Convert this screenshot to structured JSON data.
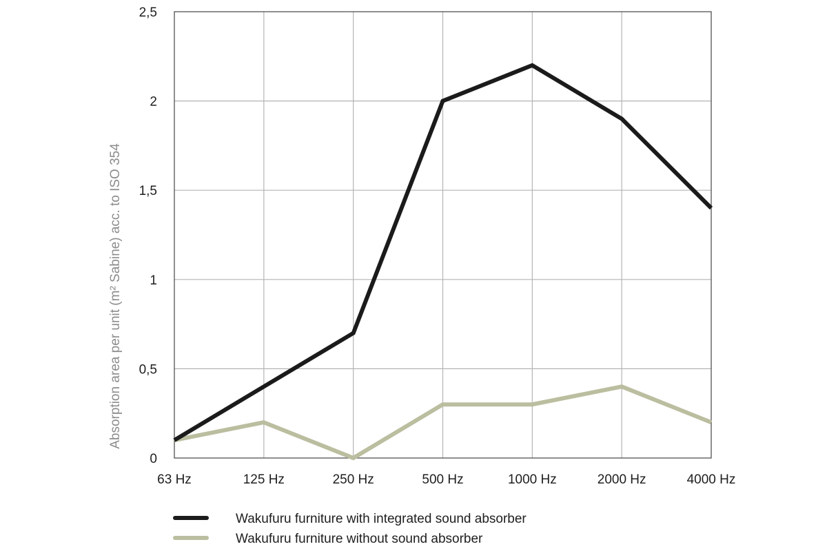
{
  "chart_data": {
    "type": "line",
    "categories": [
      "63 Hz",
      "125 Hz",
      "250 Hz",
      "500 Hz",
      "1000 Hz",
      "2000 Hz",
      "4000 Hz"
    ],
    "series": [
      {
        "name": "Wakufuru furniture with integrated sound absorber",
        "color": "#1b1b1b",
        "values": [
          0.1,
          0.4,
          0.7,
          2.0,
          2.2,
          1.9,
          1.4
        ]
      },
      {
        "name": "Wakufuru furniture without sound absorber",
        "color": "#bbbe9f",
        "values": [
          0.1,
          0.2,
          0.0,
          0.3,
          0.3,
          0.4,
          0.2
        ]
      }
    ],
    "title": "",
    "xlabel": "",
    "ylabel": "Absorption area per unit (m² Sabine) acc. to ISO 354",
    "ylim": [
      0,
      2.5
    ],
    "yticks": [
      "0",
      "0,5",
      "1",
      "1,5",
      "2",
      "2,5"
    ],
    "ytick_values": [
      0,
      0.5,
      1,
      1.5,
      2,
      2.5
    ],
    "grid": true,
    "legend_position": "bottom"
  }
}
